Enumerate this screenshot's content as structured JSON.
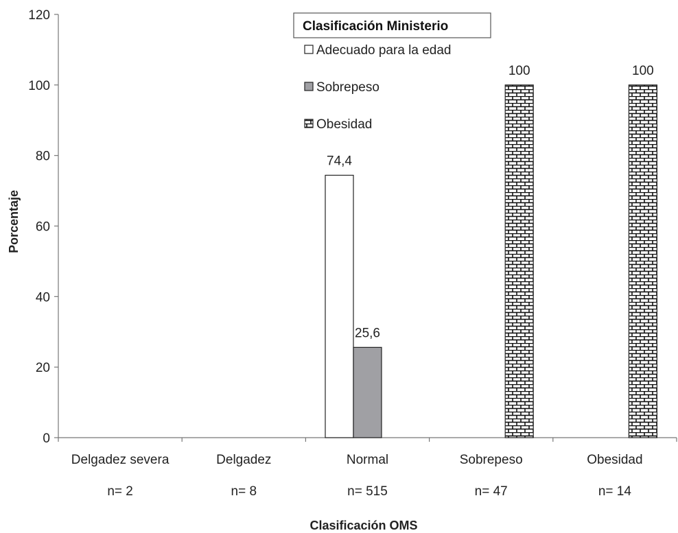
{
  "chart_data": {
    "type": "bar",
    "categories": [
      "Delgadez severa",
      "Delgadez",
      "Normal",
      "Sobrepeso",
      "Obesidad"
    ],
    "category_counts": [
      "n= 2",
      "n= 8",
      "n= 515",
      "n= 47",
      "n= 14"
    ],
    "series": [
      {
        "name": "Adecuado para la edad",
        "values": [
          null,
          null,
          74.4,
          null,
          null
        ],
        "labels": [
          null,
          null,
          "74,4",
          null,
          null
        ],
        "fill": "#ffffff",
        "pattern": "none"
      },
      {
        "name": "Sobrepeso",
        "values": [
          null,
          null,
          25.6,
          null,
          null
        ],
        "labels": [
          null,
          null,
          "25,6",
          null,
          null
        ],
        "fill": "#a0a0a4",
        "pattern": "none"
      },
      {
        "name": "Obesidad",
        "values": [
          null,
          null,
          null,
          100,
          100
        ],
        "labels": [
          null,
          null,
          null,
          "100",
          "100"
        ],
        "fill": "#ffffff",
        "pattern": "brick"
      }
    ],
    "legend_title": "Clasificación Ministerio",
    "legend_position": "top-center",
    "xlabel": "Clasificación OMS",
    "ylabel": "Porcentaje",
    "ylim": [
      0,
      120
    ],
    "yticks": [
      0,
      20,
      40,
      60,
      80,
      100,
      120
    ],
    "grid": false
  }
}
